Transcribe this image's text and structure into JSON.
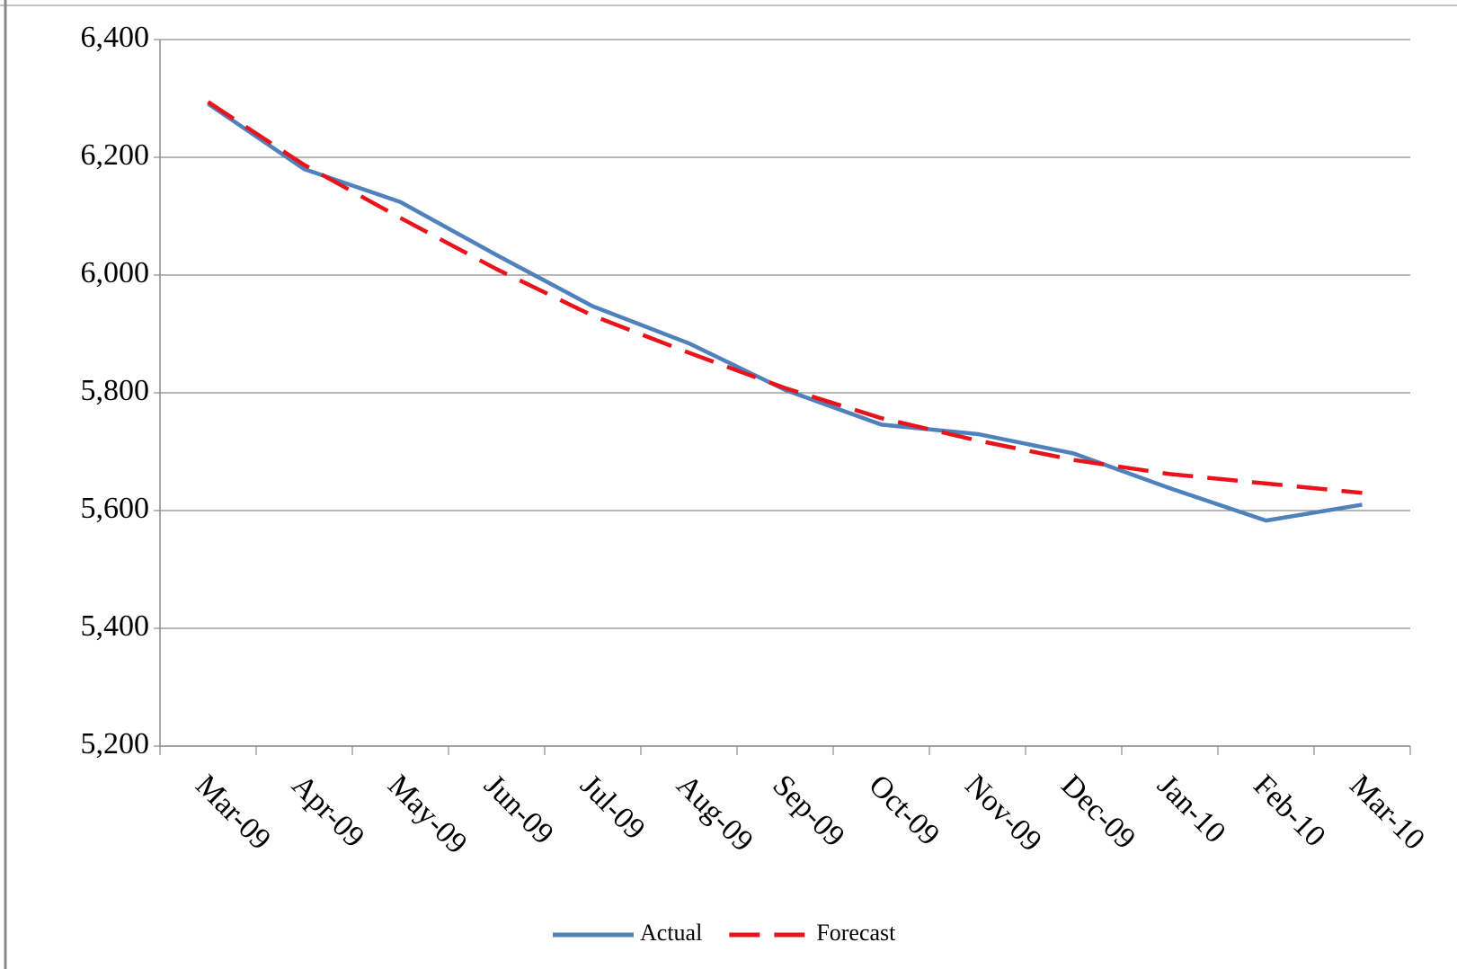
{
  "chart_data": {
    "type": "line",
    "categories": [
      "Mar-09",
      "Apr-09",
      "May-09",
      "Jun-09",
      "Jul-09",
      "Aug-09",
      "Sep-09",
      "Oct-09",
      "Nov-09",
      "Dec-09",
      "Jan-10",
      "Feb-10",
      "Mar-10"
    ],
    "series": [
      {
        "name": "Actual",
        "color": "#4f81bd",
        "dash": false,
        "values": [
          6291,
          6180,
          6124,
          6034,
          5947,
          5884,
          5805,
          5746,
          5730,
          5697,
          5638,
          5583,
          5610
        ]
      },
      {
        "name": "Forecast",
        "color": "#e8141c",
        "dash": true,
        "values": [
          6294,
          6187,
          6097,
          6010,
          5931,
          5868,
          5808,
          5757,
          5719,
          5686,
          5662,
          5646,
          5630
        ]
      }
    ],
    "ylim": [
      5200,
      6400
    ],
    "yticks": [
      {
        "value": 5200,
        "label": "5,200"
      },
      {
        "value": 5400,
        "label": "5,400"
      },
      {
        "value": 5600,
        "label": "5,600"
      },
      {
        "value": 5800,
        "label": "5,800"
      },
      {
        "value": 6000,
        "label": "6,000"
      },
      {
        "value": 6200,
        "label": "6,200"
      },
      {
        "value": 6400,
        "label": "6,400"
      }
    ],
    "grid": true,
    "legend": "bottom"
  }
}
